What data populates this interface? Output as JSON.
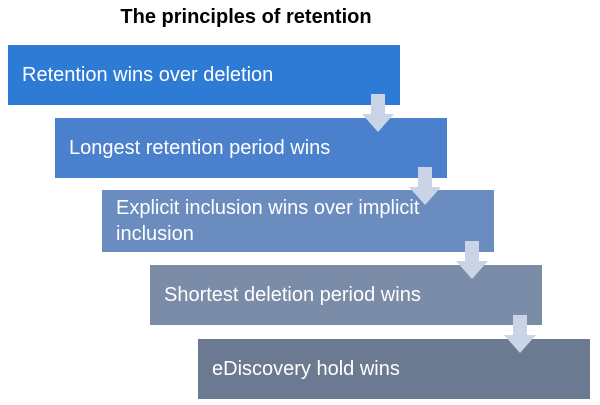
{
  "title": "The principles of retention",
  "steps": [
    {
      "label": "Retention wins over deletion",
      "color": "#2e7bd6"
    },
    {
      "label": "Longest retention period wins",
      "color": "#4a80cc"
    },
    {
      "label": "Explicit inclusion wins over implicit inclusion",
      "color": "#6a8cbf"
    },
    {
      "label": "Shortest deletion period wins",
      "color": "#7a8ca8"
    },
    {
      "label": "eDiscovery hold wins",
      "color": "#6b7a91"
    }
  ],
  "arrow_color": "#c9d4e6"
}
